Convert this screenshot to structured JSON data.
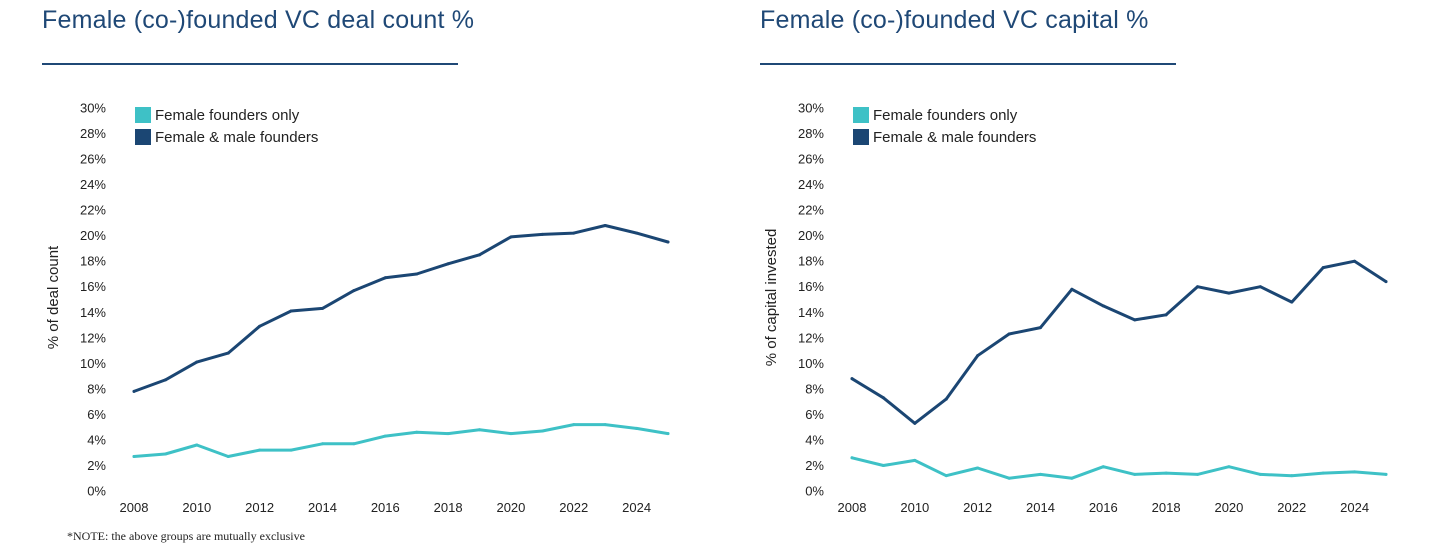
{
  "chart_data": [
    {
      "type": "line",
      "title": "Female (co-)founded VC deal count %",
      "xlabel": "",
      "ylabel": "% of deal count",
      "x": [
        2008,
        2009,
        2010,
        2011,
        2012,
        2013,
        2014,
        2015,
        2016,
        2017,
        2018,
        2019,
        2020,
        2021,
        2022,
        2023,
        2024,
        2025
      ],
      "xticks": [
        "2008",
        "2010",
        "2012",
        "2014",
        "2016",
        "2018",
        "2020",
        "2022",
        "2024"
      ],
      "yticks": [
        "0%",
        "2%",
        "4%",
        "6%",
        "8%",
        "10%",
        "12%",
        "14%",
        "16%",
        "18%",
        "20%",
        "22%",
        "24%",
        "26%",
        "28%",
        "30%"
      ],
      "ylim": [
        0,
        30
      ],
      "xlim": [
        2008,
        2025
      ],
      "grid": false,
      "legend_position": "top-left",
      "series": [
        {
          "name": "Female founders only",
          "color": "#3ec1c6",
          "values": [
            2.7,
            2.9,
            3.6,
            2.7,
            3.2,
            3.2,
            3.7,
            3.7,
            4.3,
            4.6,
            4.5,
            4.8,
            4.5,
            4.7,
            5.2,
            5.2,
            4.9,
            4.5
          ]
        },
        {
          "name": "Female & male founders",
          "color": "#1b4673",
          "values": [
            7.8,
            8.7,
            10.1,
            10.8,
            12.9,
            14.1,
            14.3,
            15.7,
            16.7,
            17.0,
            17.8,
            18.5,
            19.9,
            20.1,
            20.2,
            20.8,
            20.2,
            19.5
          ]
        }
      ]
    },
    {
      "type": "line",
      "title": "Female (co-)founded VC capital %",
      "xlabel": "",
      "ylabel": "% of capital invested",
      "x": [
        2008,
        2009,
        2010,
        2011,
        2012,
        2013,
        2014,
        2015,
        2016,
        2017,
        2018,
        2019,
        2020,
        2021,
        2022,
        2023,
        2024,
        2025
      ],
      "xticks": [
        "2008",
        "2010",
        "2012",
        "2014",
        "2016",
        "2018",
        "2020",
        "2022",
        "2024"
      ],
      "yticks": [
        "0%",
        "2%",
        "4%",
        "6%",
        "8%",
        "10%",
        "12%",
        "14%",
        "16%",
        "18%",
        "20%",
        "22%",
        "24%",
        "26%",
        "28%",
        "30%"
      ],
      "ylim": [
        0,
        30
      ],
      "xlim": [
        2008,
        2025
      ],
      "grid": false,
      "legend_position": "top-left",
      "series": [
        {
          "name": "Female founders only",
          "color": "#3ec1c6",
          "values": [
            2.6,
            2.0,
            2.4,
            1.2,
            1.8,
            1.0,
            1.3,
            1.0,
            1.9,
            1.3,
            1.4,
            1.3,
            1.9,
            1.3,
            1.2,
            1.4,
            1.5,
            1.3
          ]
        },
        {
          "name": "Female & male founders",
          "color": "#1b4673",
          "values": [
            8.8,
            7.3,
            5.3,
            7.2,
            10.6,
            12.3,
            12.8,
            15.8,
            14.5,
            13.4,
            13.8,
            16.0,
            15.5,
            16.0,
            14.8,
            17.5,
            18.0,
            16.4
          ]
        }
      ]
    }
  ],
  "note": "*NOTE: the above groups are mutually exclusive"
}
